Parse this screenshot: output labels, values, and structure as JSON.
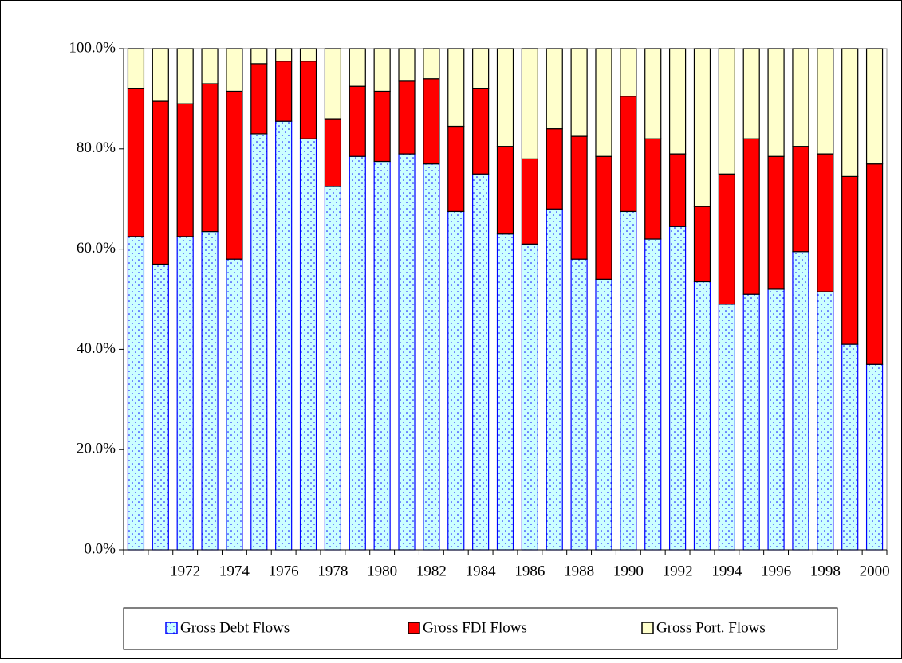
{
  "chart_data": {
    "type": "stacked_bar",
    "categories": [
      null,
      null,
      "1972",
      null,
      "1974",
      null,
      "1976",
      null,
      "1978",
      null,
      "1980",
      null,
      "1982",
      null,
      "1984",
      null,
      "1986",
      null,
      "1988",
      null,
      "1990",
      null,
      "1992",
      null,
      "1994",
      null,
      "1996",
      null,
      "1998",
      null,
      "2000"
    ],
    "series": [
      {
        "name": "Gross Debt Flows",
        "color": "#ccffff",
        "values": [
          62.5,
          57,
          62.5,
          63.5,
          58,
          83,
          85.5,
          82,
          72.5,
          78.5,
          77.5,
          79,
          77,
          67.5,
          75,
          63,
          61,
          68,
          58,
          54,
          67.5,
          62,
          64.5,
          53.5,
          49,
          51,
          52,
          59.5,
          51.5,
          41,
          37
        ]
      },
      {
        "name": "Gross FDI Flows",
        "color": "#ff0000",
        "values": [
          29.5,
          32.5,
          26.5,
          29.5,
          33.5,
          14,
          12,
          15.5,
          13.5,
          14,
          14,
          14.5,
          17,
          17,
          17,
          17.5,
          17,
          16,
          24.5,
          24.5,
          23,
          20,
          14.5,
          15,
          26,
          31,
          26.5,
          21,
          27.5,
          33.5,
          40
        ]
      },
      {
        "name": "Gross Port. Flows",
        "color": "#ffffcc",
        "values": [
          8,
          10.5,
          11,
          7,
          8.5,
          3,
          2.5,
          2.5,
          14,
          7.5,
          8.5,
          6.5,
          6,
          15.5,
          8,
          19.5,
          22,
          16,
          17.5,
          21.5,
          9.5,
          18,
          21,
          31.5,
          25,
          18,
          21.5,
          19.5,
          21,
          25.5,
          23
        ]
      }
    ],
    "ylim": [
      0,
      100
    ],
    "yticks": [
      {
        "value": 0,
        "label": "0.0%"
      },
      {
        "value": 20,
        "label": "20.0%"
      },
      {
        "value": 40,
        "label": "40.0%"
      },
      {
        "value": 60,
        "label": "60.0%"
      },
      {
        "value": 80,
        "label": "80.0%"
      },
      {
        "value": 100,
        "label": "100.0%"
      }
    ],
    "legend": "bottom"
  }
}
